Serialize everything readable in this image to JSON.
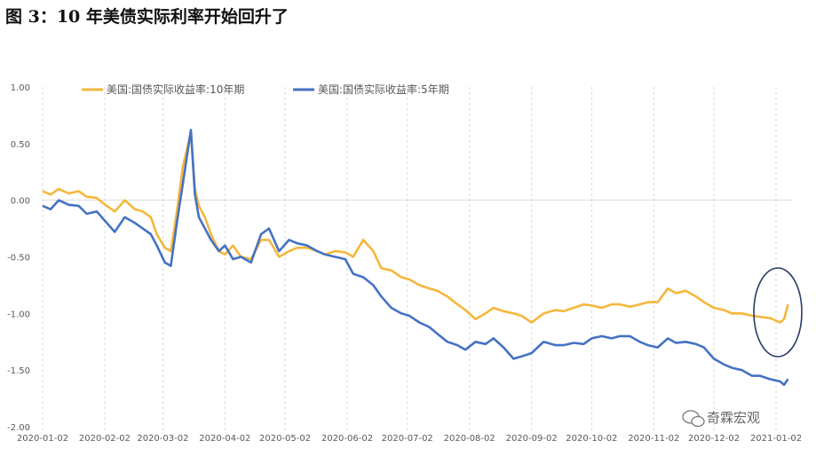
{
  "figure": {
    "title": "图 3：10 年美债实际利率开始回升了",
    "watermark": "奇霖宏观"
  },
  "chart_data": {
    "type": "line",
    "title": "",
    "xlabel": "",
    "ylabel": "",
    "ylim": [
      -2.0,
      1.0
    ],
    "y_ticks": [
      1.0,
      0.5,
      0.0,
      -0.5,
      -1.0,
      -1.5,
      -2.0
    ],
    "y_tick_labels": [
      "1.00",
      "0.50",
      "0.00",
      "-0.50",
      "-1.00",
      "-1.50",
      "-2.00"
    ],
    "x_tick_labels": [
      "2020-01-02",
      "2020-02-02",
      "2020-03-02",
      "2020-04-02",
      "2020-05-02",
      "2020-06-02",
      "2020-07-02",
      "2020-08-02",
      "2020-09-02",
      "2020-10-02",
      "2020-11-02",
      "2020-12-02",
      "2021-01-02"
    ],
    "grid": "vertical dashed",
    "legend_position": "top",
    "series": [
      {
        "name": "美国:国债实际收益率:10年期",
        "color": "#F5B73B",
        "x": [
          "2020-01-02",
          "2020-01-06",
          "2020-01-10",
          "2020-01-15",
          "2020-01-20",
          "2020-01-24",
          "2020-01-29",
          "2020-02-03",
          "2020-02-07",
          "2020-02-12",
          "2020-02-17",
          "2020-02-21",
          "2020-02-25",
          "2020-02-28",
          "2020-03-03",
          "2020-03-06",
          "2020-03-09",
          "2020-03-12",
          "2020-03-16",
          "2020-03-18",
          "2020-03-20",
          "2020-03-23",
          "2020-03-26",
          "2020-03-30",
          "2020-04-02",
          "2020-04-06",
          "2020-04-10",
          "2020-04-15",
          "2020-04-20",
          "2020-04-24",
          "2020-04-29",
          "2020-05-04",
          "2020-05-08",
          "2020-05-13",
          "2020-05-18",
          "2020-05-22",
          "2020-05-27",
          "2020-06-01",
          "2020-06-05",
          "2020-06-10",
          "2020-06-15",
          "2020-06-19",
          "2020-06-24",
          "2020-06-29",
          "2020-07-03",
          "2020-07-08",
          "2020-07-13",
          "2020-07-17",
          "2020-07-22",
          "2020-07-27",
          "2020-07-31",
          "2020-08-05",
          "2020-08-10",
          "2020-08-14",
          "2020-08-19",
          "2020-08-24",
          "2020-08-28",
          "2020-09-02",
          "2020-09-08",
          "2020-09-14",
          "2020-09-18",
          "2020-09-23",
          "2020-09-28",
          "2020-10-02",
          "2020-10-07",
          "2020-10-12",
          "2020-10-16",
          "2020-10-21",
          "2020-10-26",
          "2020-10-30",
          "2020-11-04",
          "2020-11-09",
          "2020-11-13",
          "2020-11-18",
          "2020-11-23",
          "2020-11-27",
          "2020-12-02",
          "2020-12-07",
          "2020-12-11",
          "2020-12-16",
          "2020-12-21",
          "2020-12-25",
          "2020-12-30",
          "2021-01-04",
          "2021-01-06",
          "2021-01-08"
        ],
        "values": [
          0.08,
          0.05,
          0.1,
          0.06,
          0.08,
          0.03,
          0.02,
          -0.05,
          -0.1,
          0.0,
          -0.08,
          -0.1,
          -0.15,
          -0.3,
          -0.42,
          -0.45,
          -0.1,
          0.3,
          0.6,
          0.1,
          -0.05,
          -0.15,
          -0.3,
          -0.45,
          -0.48,
          -0.4,
          -0.5,
          -0.52,
          -0.35,
          -0.35,
          -0.5,
          -0.45,
          -0.42,
          -0.42,
          -0.45,
          -0.48,
          -0.45,
          -0.46,
          -0.5,
          -0.35,
          -0.45,
          -0.6,
          -0.62,
          -0.68,
          -0.7,
          -0.75,
          -0.78,
          -0.8,
          -0.85,
          -0.92,
          -0.97,
          -1.05,
          -1.0,
          -0.95,
          -0.98,
          -1.0,
          -1.02,
          -1.08,
          -1.0,
          -0.97,
          -0.98,
          -0.95,
          -0.92,
          -0.93,
          -0.95,
          -0.92,
          -0.92,
          -0.94,
          -0.92,
          -0.9,
          -0.9,
          -0.78,
          -0.82,
          -0.8,
          -0.85,
          -0.9,
          -0.95,
          -0.97,
          -1.0,
          -1.0,
          -1.02,
          -1.03,
          -1.04,
          -1.08,
          -1.05,
          -0.92
        ]
      },
      {
        "name": "美国:国债实际收益率:5年期",
        "color": "#4472C4",
        "x": [
          "2020-01-02",
          "2020-01-06",
          "2020-01-10",
          "2020-01-15",
          "2020-01-20",
          "2020-01-24",
          "2020-01-29",
          "2020-02-03",
          "2020-02-07",
          "2020-02-12",
          "2020-02-17",
          "2020-02-21",
          "2020-02-25",
          "2020-02-28",
          "2020-03-03",
          "2020-03-06",
          "2020-03-09",
          "2020-03-12",
          "2020-03-16",
          "2020-03-18",
          "2020-03-20",
          "2020-03-23",
          "2020-03-26",
          "2020-03-30",
          "2020-04-02",
          "2020-04-06",
          "2020-04-10",
          "2020-04-15",
          "2020-04-20",
          "2020-04-24",
          "2020-04-29",
          "2020-05-04",
          "2020-05-08",
          "2020-05-13",
          "2020-05-18",
          "2020-05-22",
          "2020-05-27",
          "2020-06-01",
          "2020-06-05",
          "2020-06-10",
          "2020-06-15",
          "2020-06-19",
          "2020-06-24",
          "2020-06-29",
          "2020-07-03",
          "2020-07-08",
          "2020-07-13",
          "2020-07-17",
          "2020-07-22",
          "2020-07-27",
          "2020-07-31",
          "2020-08-05",
          "2020-08-10",
          "2020-08-14",
          "2020-08-19",
          "2020-08-24",
          "2020-08-28",
          "2020-09-02",
          "2020-09-08",
          "2020-09-14",
          "2020-09-18",
          "2020-09-23",
          "2020-09-28",
          "2020-10-02",
          "2020-10-07",
          "2020-10-12",
          "2020-10-16",
          "2020-10-21",
          "2020-10-26",
          "2020-10-30",
          "2020-11-04",
          "2020-11-09",
          "2020-11-13",
          "2020-11-18",
          "2020-11-23",
          "2020-11-27",
          "2020-12-02",
          "2020-12-07",
          "2020-12-11",
          "2020-12-16",
          "2020-12-21",
          "2020-12-25",
          "2020-12-30",
          "2021-01-04",
          "2021-01-06",
          "2021-01-08"
        ],
        "values": [
          -0.05,
          -0.08,
          0.0,
          -0.04,
          -0.05,
          -0.12,
          -0.1,
          -0.2,
          -0.28,
          -0.15,
          -0.2,
          -0.25,
          -0.3,
          -0.4,
          -0.55,
          -0.58,
          -0.2,
          0.15,
          0.62,
          0.05,
          -0.15,
          -0.25,
          -0.35,
          -0.45,
          -0.4,
          -0.52,
          -0.5,
          -0.55,
          -0.3,
          -0.25,
          -0.45,
          -0.35,
          -0.38,
          -0.4,
          -0.45,
          -0.48,
          -0.5,
          -0.52,
          -0.65,
          -0.68,
          -0.75,
          -0.85,
          -0.95,
          -1.0,
          -1.02,
          -1.08,
          -1.12,
          -1.18,
          -1.25,
          -1.28,
          -1.32,
          -1.25,
          -1.27,
          -1.22,
          -1.3,
          -1.4,
          -1.38,
          -1.35,
          -1.25,
          -1.28,
          -1.28,
          -1.26,
          -1.27,
          -1.22,
          -1.2,
          -1.22,
          -1.2,
          -1.2,
          -1.25,
          -1.28,
          -1.3,
          -1.22,
          -1.26,
          -1.25,
          -1.27,
          -1.3,
          -1.4,
          -1.45,
          -1.48,
          -1.5,
          -1.55,
          -1.55,
          -1.58,
          -1.6,
          -1.63,
          -1.58
        ]
      }
    ]
  }
}
